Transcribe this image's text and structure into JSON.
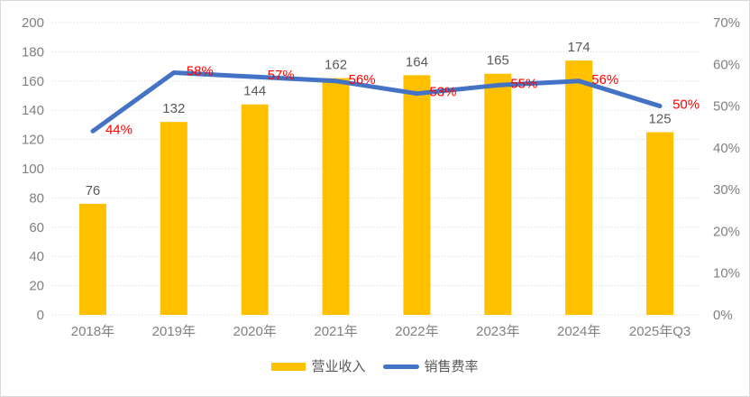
{
  "chart_data": {
    "type": "combo",
    "categories": [
      "2018年",
      "2019年",
      "2020年",
      "2021年",
      "2022年",
      "2023年",
      "2024年",
      "2025年Q3"
    ],
    "series": [
      {
        "name": "营业收入",
        "type": "bar",
        "axis": "left",
        "values": [
          76,
          132,
          144,
          162,
          164,
          165,
          174,
          125
        ],
        "labels": [
          "76",
          "132",
          "144",
          "162",
          "164",
          "165",
          "174",
          "125"
        ],
        "color": "#FFC000",
        "label_color": "#595959"
      },
      {
        "name": "销售费率",
        "type": "line",
        "axis": "right",
        "values": [
          44,
          58,
          57,
          56,
          53,
          55,
          56,
          50
        ],
        "labels": [
          "44%",
          "58%",
          "57%",
          "56%",
          "53%",
          "55%",
          "56%",
          "50%"
        ],
        "color": "#4472C4",
        "label_color": "#FF0000"
      }
    ],
    "left_axis": {
      "min": 0,
      "max": 200,
      "step": 20,
      "ticks": [
        "0",
        "20",
        "40",
        "60",
        "80",
        "100",
        "120",
        "140",
        "160",
        "180",
        "200"
      ]
    },
    "right_axis": {
      "min": 0,
      "max": 70,
      "step": 10,
      "ticks": [
        "0%",
        "10%",
        "20%",
        "30%",
        "40%",
        "50%",
        "60%",
        "70%"
      ]
    },
    "title": "",
    "xlabel": "",
    "ylabel": "",
    "grid": true,
    "grid_color": "#D9D9D9",
    "tick_color": "#808080",
    "legend_position": "bottom"
  },
  "legend": {
    "items": [
      {
        "label": "营业收入",
        "color": "#FFC000",
        "type": "bar"
      },
      {
        "label": "销售费率",
        "color": "#4472C4",
        "type": "line"
      }
    ]
  }
}
